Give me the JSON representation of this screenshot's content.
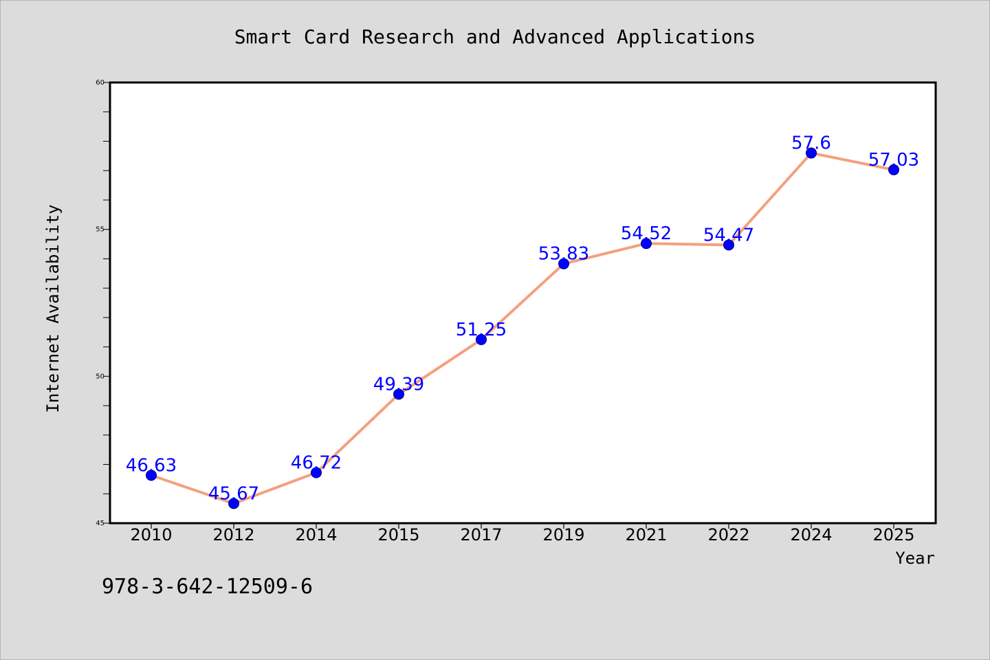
{
  "chart_data": {
    "type": "line",
    "title": "Smart Card Research and Advanced Applications",
    "xlabel": "Year",
    "ylabel": "Internet Availability",
    "categories": [
      "2010",
      "2012",
      "2014",
      "2015",
      "2017",
      "2019",
      "2021",
      "2022",
      "2024",
      "2025"
    ],
    "series": [
      {
        "values": [
          46.63,
          45.67,
          46.72,
          49.39,
          51.25,
          53.83,
          54.52,
          54.47,
          57.6,
          57.03
        ],
        "data_labels": [
          "46.63",
          "45.67",
          "46.72",
          "49.39",
          "51.25",
          "53.83",
          "54.52",
          "54.47",
          "57.6",
          "57.03"
        ]
      }
    ],
    "ylim": [
      45,
      60
    ],
    "yticks": [
      45,
      50,
      55,
      60
    ],
    "ytick_labels": [
      "45",
      "50",
      "55",
      "60"
    ],
    "grid": false,
    "legend": "none",
    "colors": {
      "line": "#f4a07f",
      "marker": "#0000ff",
      "data_label": "#0000ff",
      "plot_background": "#ffffff",
      "figure_background": "#dcdcdc"
    }
  },
  "annotation": "978-3-642-12509-6"
}
